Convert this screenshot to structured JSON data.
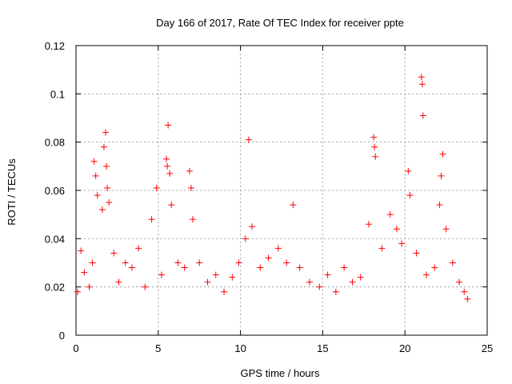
{
  "chart_data": {
    "type": "scatter",
    "title": "Day 166 of 2017, Rate Of TEC Index for receiver ppte",
    "xlabel": "GPS time / hours",
    "ylabel": "ROTI / TECUs",
    "xlim": [
      0,
      25
    ],
    "ylim": [
      0,
      0.12
    ],
    "x_ticks": [
      "0",
      "5",
      "10",
      "15",
      "20",
      "25"
    ],
    "y_ticks": [
      "0",
      "0.02",
      "0.04",
      "0.06",
      "0.08",
      "0.1",
      "0.12"
    ],
    "grid": true,
    "legend": "none",
    "marker": "+",
    "color": "#ff0000",
    "series": [
      {
        "points": [
          [
            0.1,
            0.018
          ],
          [
            0.3,
            0.035
          ],
          [
            0.5,
            0.026
          ],
          [
            0.8,
            0.02
          ],
          [
            1.0,
            0.03
          ],
          [
            1.1,
            0.072
          ],
          [
            1.2,
            0.066
          ],
          [
            1.3,
            0.058
          ],
          [
            1.6,
            0.052
          ],
          [
            1.7,
            0.078
          ],
          [
            1.8,
            0.084
          ],
          [
            1.85,
            0.07
          ],
          [
            1.9,
            0.061
          ],
          [
            2.0,
            0.055
          ],
          [
            2.3,
            0.034
          ],
          [
            2.6,
            0.022
          ],
          [
            3.0,
            0.03
          ],
          [
            3.4,
            0.028
          ],
          [
            3.8,
            0.036
          ],
          [
            4.2,
            0.02
          ],
          [
            4.6,
            0.048
          ],
          [
            4.9,
            0.061
          ],
          [
            5.2,
            0.025
          ],
          [
            5.5,
            0.073
          ],
          [
            5.55,
            0.07
          ],
          [
            5.6,
            0.087
          ],
          [
            5.7,
            0.067
          ],
          [
            5.8,
            0.054
          ],
          [
            6.2,
            0.03
          ],
          [
            6.6,
            0.028
          ],
          [
            6.9,
            0.068
          ],
          [
            7.0,
            0.061
          ],
          [
            7.1,
            0.048
          ],
          [
            7.5,
            0.03
          ],
          [
            8.0,
            0.022
          ],
          [
            8.5,
            0.025
          ],
          [
            9.0,
            0.018
          ],
          [
            9.5,
            0.024
          ],
          [
            9.9,
            0.03
          ],
          [
            10.3,
            0.04
          ],
          [
            10.5,
            0.081
          ],
          [
            10.7,
            0.045
          ],
          [
            11.2,
            0.028
          ],
          [
            11.7,
            0.032
          ],
          [
            12.3,
            0.036
          ],
          [
            12.8,
            0.03
          ],
          [
            13.2,
            0.054
          ],
          [
            13.6,
            0.028
          ],
          [
            14.2,
            0.022
          ],
          [
            14.8,
            0.02
          ],
          [
            15.3,
            0.025
          ],
          [
            15.8,
            0.018
          ],
          [
            16.3,
            0.028
          ],
          [
            16.8,
            0.022
          ],
          [
            17.3,
            0.024
          ],
          [
            17.8,
            0.046
          ],
          [
            18.1,
            0.082
          ],
          [
            18.15,
            0.078
          ],
          [
            18.2,
            0.074
          ],
          [
            18.6,
            0.036
          ],
          [
            19.1,
            0.05
          ],
          [
            19.5,
            0.044
          ],
          [
            19.8,
            0.038
          ],
          [
            20.2,
            0.068
          ],
          [
            20.3,
            0.058
          ],
          [
            20.7,
            0.034
          ],
          [
            21.0,
            0.107
          ],
          [
            21.05,
            0.104
          ],
          [
            21.1,
            0.091
          ],
          [
            21.3,
            0.025
          ],
          [
            21.8,
            0.028
          ],
          [
            22.1,
            0.054
          ],
          [
            22.2,
            0.066
          ],
          [
            22.3,
            0.075
          ],
          [
            22.5,
            0.044
          ],
          [
            22.9,
            0.03
          ],
          [
            23.3,
            0.022
          ],
          [
            23.6,
            0.018
          ],
          [
            23.8,
            0.015
          ]
        ]
      }
    ]
  }
}
